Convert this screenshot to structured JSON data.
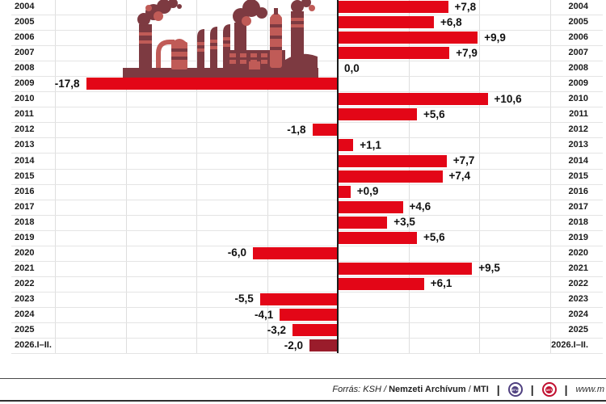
{
  "chart_data": {
    "type": "bar",
    "orientation": "horizontal",
    "title": "",
    "categories": [
      "2004",
      "2005",
      "2006",
      "2007",
      "2008",
      "2009",
      "2010",
      "2011",
      "2012",
      "2013",
      "2014",
      "2015",
      "2016",
      "2017",
      "2018",
      "2019",
      "2020",
      "2021",
      "2022",
      "2023",
      "2024",
      "2025",
      "2026.I–II."
    ],
    "values": [
      7.8,
      6.8,
      9.9,
      7.9,
      0.0,
      -17.8,
      10.6,
      5.6,
      -1.8,
      1.1,
      7.7,
      7.4,
      0.9,
      4.6,
      3.5,
      5.6,
      -6.0,
      9.5,
      6.1,
      -5.5,
      -4.1,
      -3.2,
      -2.0
    ],
    "labels": [
      "+7,8",
      "+6,8",
      "+9,9",
      "+7,9",
      "0,0",
      "-17,8",
      "+10,6",
      "+5,6",
      "-1,8",
      "+1,1",
      "+7,7",
      "+7,4",
      "+0,9",
      "+4,6",
      "+3,5",
      "+5,6",
      "-6,0",
      "+9,5",
      "+6,1",
      "-5,5",
      "-4,1",
      "-3,2",
      "-2,0"
    ],
    "gridlines_x": [
      -20,
      -15,
      -10,
      -5,
      5,
      10,
      15
    ],
    "grid": true,
    "bar_color": "#e30617",
    "last_bar_color": "#9a1c2b",
    "axis_color": "#1b1b1b"
  },
  "illustration": {
    "name": "factory",
    "dark_color": "#7d3a41",
    "light_color": "#c05b57"
  },
  "footer": {
    "source_prefix": "Forrás: KSH /",
    "source_bold": "Nemzeti Archívum",
    "source_sep": "/",
    "source_bold2": "MTI",
    "divider": "|",
    "logos": [
      {
        "label": "MTVA",
        "color": "#4f4080"
      },
      {
        "label": "MTI",
        "color": "#c00f2f"
      }
    ],
    "website": "www.m"
  }
}
